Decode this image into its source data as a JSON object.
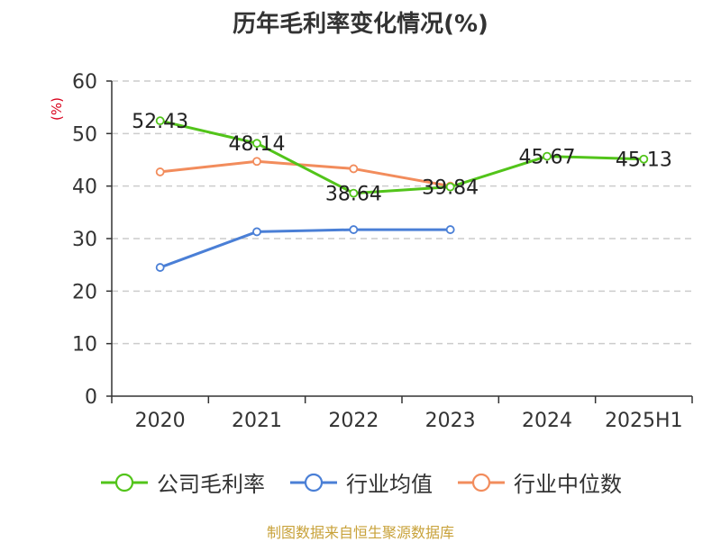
{
  "title": "历年毛利率变化情况(%)",
  "unit_label": "(%)",
  "source": "制图数据来自恒生聚源数据库",
  "chart_data": {
    "type": "line",
    "title": "历年毛利率变化情况(%)",
    "ylabel": "(%)",
    "xlabel": "",
    "categories": [
      "2020",
      "2021",
      "2022",
      "2023",
      "2024",
      "2025H1"
    ],
    "ylim": [
      0,
      60
    ],
    "yticks": [
      0,
      10,
      20,
      30,
      40,
      50,
      60
    ],
    "grid": true,
    "legend_position": "bottom",
    "series": [
      {
        "name": "公司毛利率",
        "color": "#52c41a",
        "values": [
          52.43,
          48.14,
          38.64,
          39.84,
          45.67,
          45.13
        ],
        "labels": [
          "52.43",
          "48.14",
          "38.64",
          "39.84",
          "45.67",
          "45.13"
        ]
      },
      {
        "name": "行业均值",
        "color": "#4a7fd6",
        "values": [
          24.5,
          31.3,
          31.7,
          31.7,
          null,
          null
        ]
      },
      {
        "name": "行业中位数",
        "color": "#f28c5c",
        "values": [
          42.7,
          44.7,
          43.3,
          40.0,
          null,
          null
        ]
      }
    ]
  }
}
